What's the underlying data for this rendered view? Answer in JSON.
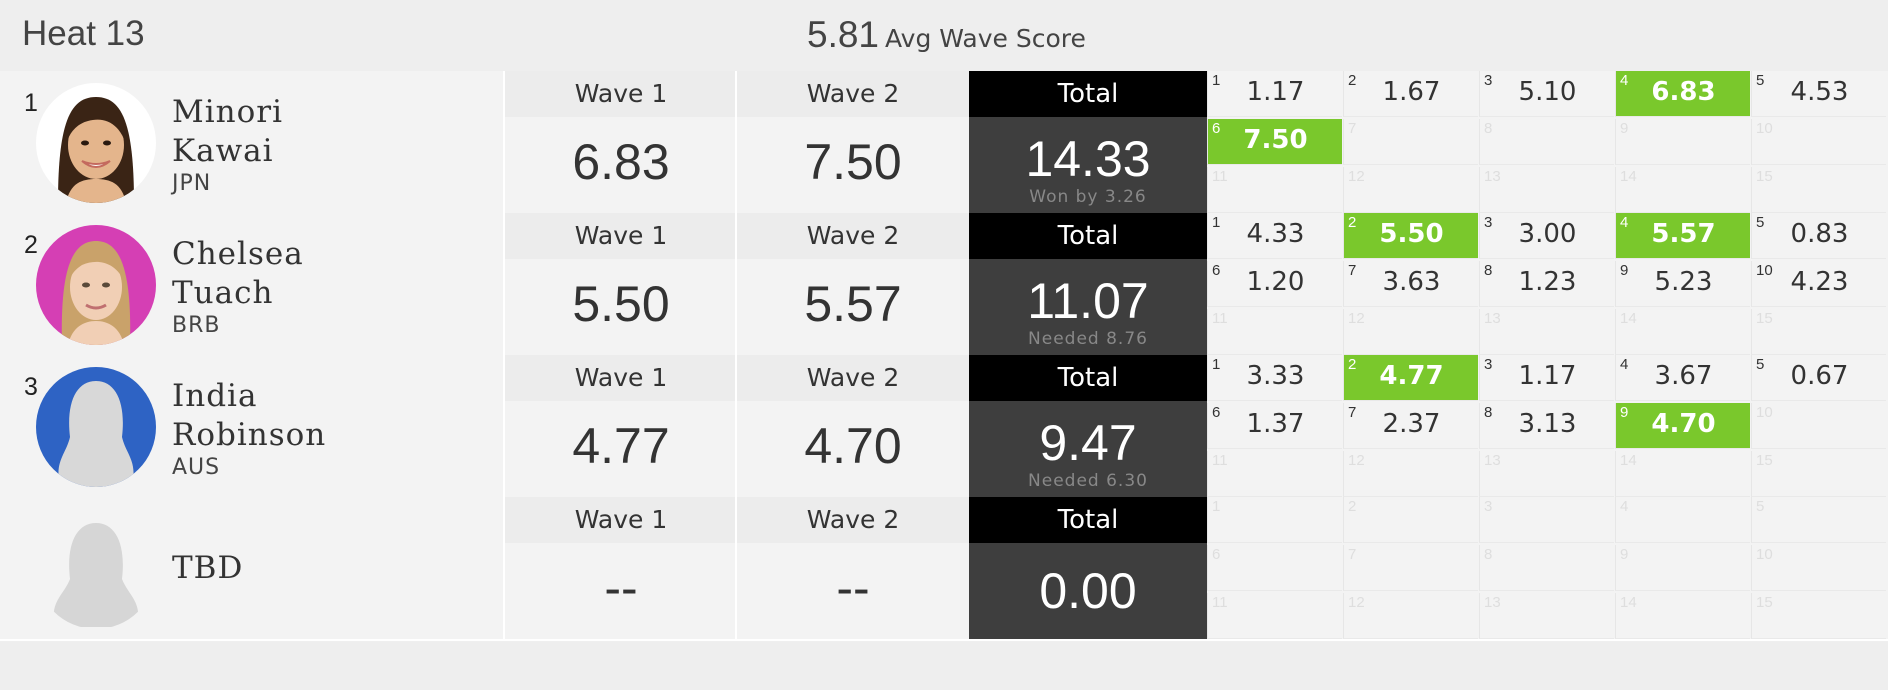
{
  "header": {
    "heat_title": "Heat 13",
    "avg_value": "5.81",
    "avg_label": "Avg Wave Score"
  },
  "colors": {
    "highlight": "#7ac82c",
    "total_header": "#000000",
    "total_body": "#3e3e3e"
  },
  "labels": {
    "wave1": "Wave 1",
    "wave2": "Wave 2",
    "total": "Total"
  },
  "surfers": [
    {
      "rank": "1",
      "first": "Minori",
      "last": "Kawai",
      "country": "JPN",
      "wave1": "6.83",
      "wave2": "7.50",
      "total": "14.33",
      "total_note": "Won by 3.26",
      "avatar": "photo-minori"
    },
    {
      "rank": "2",
      "first": "Chelsea",
      "last": "Tuach",
      "country": "BRB",
      "wave1": "5.50",
      "wave2": "5.57",
      "total": "11.07",
      "total_note": "Needed 8.76",
      "avatar": "photo-chelsea"
    },
    {
      "rank": "3",
      "first": "India",
      "last": "Robinson",
      "country": "AUS",
      "wave1": "4.77",
      "wave2": "4.70",
      "total": "9.47",
      "total_note": "Needed 6.30",
      "avatar": "silhouette-blue"
    },
    {
      "rank": "",
      "first": "TBD",
      "last": "",
      "country": "",
      "wave1": "--",
      "wave2": "--",
      "total": "0.00",
      "total_note": "",
      "avatar": "silhouette-plain"
    }
  ],
  "wave_scores": [
    [
      {
        "n": "1",
        "v": "1.17"
      },
      {
        "n": "2",
        "v": "1.67"
      },
      {
        "n": "3",
        "v": "5.10"
      },
      {
        "n": "4",
        "v": "6.83",
        "hl": true
      },
      {
        "n": "5",
        "v": "4.53"
      },
      {
        "n": "6",
        "v": "7.50",
        "hl": true
      },
      {
        "n": "7",
        "v": ""
      },
      {
        "n": "8",
        "v": ""
      },
      {
        "n": "9",
        "v": ""
      },
      {
        "n": "10",
        "v": ""
      },
      {
        "n": "11",
        "v": ""
      },
      {
        "n": "12",
        "v": ""
      },
      {
        "n": "13",
        "v": ""
      },
      {
        "n": "14",
        "v": ""
      },
      {
        "n": "15",
        "v": ""
      }
    ],
    [
      {
        "n": "1",
        "v": "4.33"
      },
      {
        "n": "2",
        "v": "5.50",
        "hl": true
      },
      {
        "n": "3",
        "v": "3.00"
      },
      {
        "n": "4",
        "v": "5.57",
        "hl": true
      },
      {
        "n": "5",
        "v": "0.83"
      },
      {
        "n": "6",
        "v": "1.20"
      },
      {
        "n": "7",
        "v": "3.63"
      },
      {
        "n": "8",
        "v": "1.23"
      },
      {
        "n": "9",
        "v": "5.23"
      },
      {
        "n": "10",
        "v": "4.23"
      },
      {
        "n": "11",
        "v": ""
      },
      {
        "n": "12",
        "v": ""
      },
      {
        "n": "13",
        "v": ""
      },
      {
        "n": "14",
        "v": ""
      },
      {
        "n": "15",
        "v": ""
      }
    ],
    [
      {
        "n": "1",
        "v": "3.33"
      },
      {
        "n": "2",
        "v": "4.77",
        "hl": true
      },
      {
        "n": "3",
        "v": "1.17"
      },
      {
        "n": "4",
        "v": "3.67"
      },
      {
        "n": "5",
        "v": "0.67"
      },
      {
        "n": "6",
        "v": "1.37"
      },
      {
        "n": "7",
        "v": "2.37"
      },
      {
        "n": "8",
        "v": "3.13"
      },
      {
        "n": "9",
        "v": "4.70",
        "hl": true
      },
      {
        "n": "10",
        "v": ""
      },
      {
        "n": "11",
        "v": ""
      },
      {
        "n": "12",
        "v": ""
      },
      {
        "n": "13",
        "v": ""
      },
      {
        "n": "14",
        "v": ""
      },
      {
        "n": "15",
        "v": ""
      }
    ],
    [
      {
        "n": "1",
        "v": ""
      },
      {
        "n": "2",
        "v": ""
      },
      {
        "n": "3",
        "v": ""
      },
      {
        "n": "4",
        "v": ""
      },
      {
        "n": "5",
        "v": ""
      },
      {
        "n": "6",
        "v": ""
      },
      {
        "n": "7",
        "v": ""
      },
      {
        "n": "8",
        "v": ""
      },
      {
        "n": "9",
        "v": ""
      },
      {
        "n": "10",
        "v": ""
      },
      {
        "n": "11",
        "v": ""
      },
      {
        "n": "12",
        "v": ""
      },
      {
        "n": "13",
        "v": ""
      },
      {
        "n": "14",
        "v": ""
      },
      {
        "n": "15",
        "v": ""
      }
    ]
  ]
}
